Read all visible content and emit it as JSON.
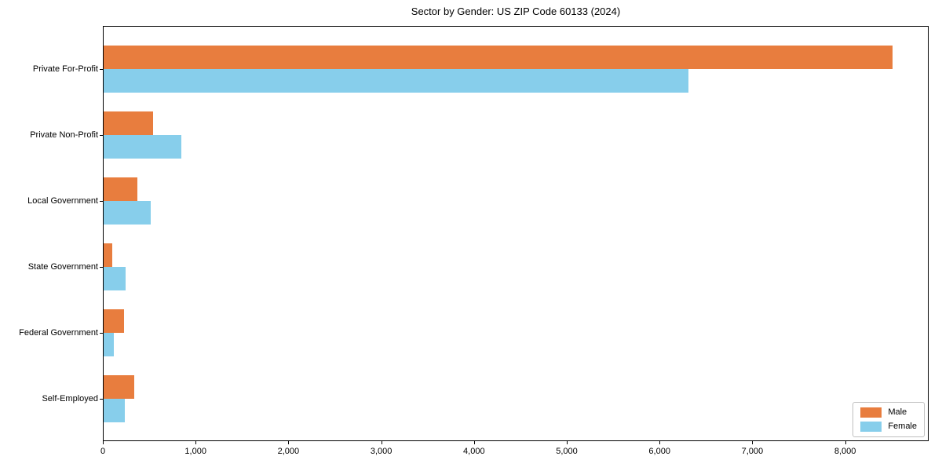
{
  "title": "Sector by Gender: US ZIP Code 60133 (2024)",
  "chart_data": {
    "type": "bar",
    "orientation": "horizontal",
    "title": "Sector by Gender: US ZIP Code 60133 (2024)",
    "categories": [
      "Private For-Profit",
      "Private Non-Profit",
      "Local Government",
      "State Government",
      "Federal Government",
      "Self-Employed"
    ],
    "series": [
      {
        "name": "Male",
        "color": "#e87d3e",
        "values": [
          8500,
          530,
          360,
          90,
          220,
          330
        ]
      },
      {
        "name": "Female",
        "color": "#87ceeb",
        "values": [
          6300,
          840,
          510,
          240,
          110,
          230
        ]
      }
    ],
    "xlabel": "",
    "ylabel": "",
    "xlim": [
      0,
      8900
    ],
    "x_ticks": [
      0,
      1000,
      2000,
      3000,
      4000,
      5000,
      6000,
      7000,
      8000
    ],
    "x_tick_labels": [
      "0",
      "1,000",
      "2,000",
      "3,000",
      "4,000",
      "5,000",
      "6,000",
      "7,000",
      "8,000"
    ],
    "grid": false,
    "legend_position": "lower right",
    "axis_color": "#000000",
    "background_color": "#ffffff",
    "legend_border_color": "#c0c0c0"
  }
}
